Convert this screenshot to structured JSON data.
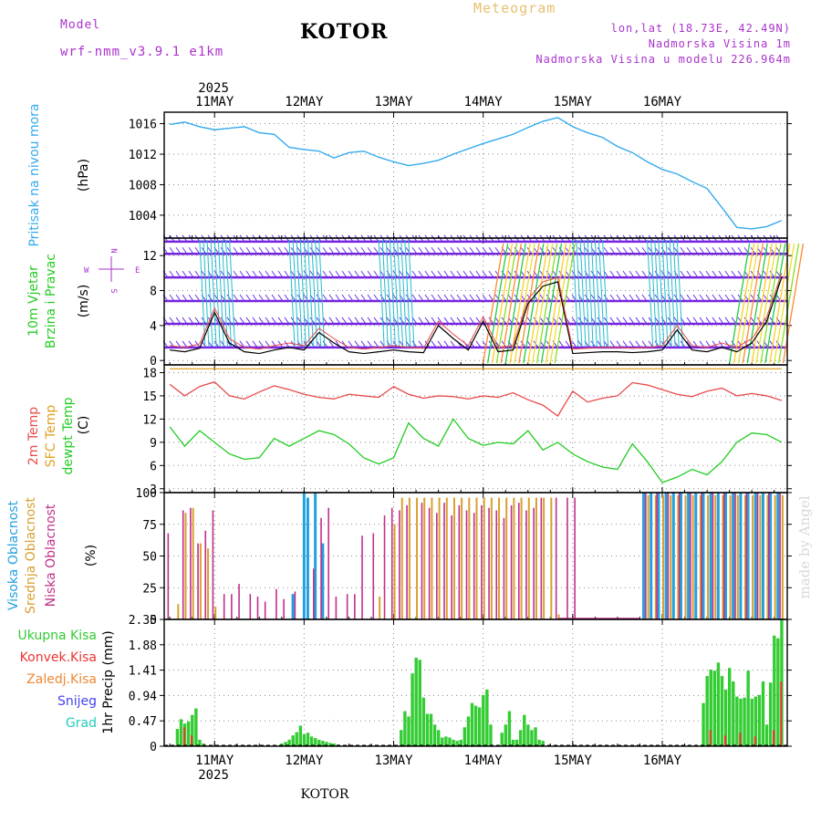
{
  "header": {
    "model_label": "Model",
    "model_name": "wrf-nmm_v3.9.1 e1km",
    "station": "KOTOR",
    "product": "Meteogram",
    "lonlat": "lon,lat (18.73E, 42.49N)",
    "elevation": "Nadmorska Visina 1m",
    "model_elevation": "Nadmorska Visina u modelu 226.964m",
    "watermark": "made by Angel",
    "footer_station": "KOTOR"
  },
  "colors": {
    "pressure": "#33aaee",
    "temp2m": "#e84a4a",
    "sfc_temp": "#e0a020",
    "dewpt": "#22cc22",
    "cloud_high": "#22a0e0",
    "cloud_mid": "#d8a030",
    "cloud_low": "#c0308a",
    "rain_total": "#33cc33",
    "rain_conv": "#ee3333",
    "freezing": "#ee8833",
    "snow": "#4444ee",
    "hail": "#22ccbb",
    "wind_label": "#22cc22",
    "wind_axis": "#aa33cc",
    "model": "#aa33cc",
    "product": "#e8c070"
  },
  "time_axis": {
    "year": "2025",
    "days": [
      "11MAY",
      "12MAY",
      "13MAY",
      "14MAY",
      "15MAY",
      "16MAY"
    ],
    "bottom_days": [
      "11MAY",
      "12MAY",
      "13MAY",
      "14MAY",
      "15MAY",
      "16MAY"
    ],
    "bottom_year": "2025"
  },
  "chart_data": [
    {
      "type": "line",
      "id": "pressure",
      "ylabel_lines": [
        "Pritisak na nivou mora"
      ],
      "unit": "(hPa)",
      "ylim": [
        1001,
        1017.5
      ],
      "yticks": [
        1004,
        1008,
        1012,
        1016
      ],
      "x_hours": [
        -12,
        -8,
        -4,
        0,
        4,
        8,
        12,
        16,
        20,
        24,
        28,
        32,
        36,
        40,
        44,
        48,
        52,
        56,
        60,
        64,
        68,
        72,
        76,
        80,
        84,
        88,
        92,
        96,
        100,
        104,
        108,
        112,
        116,
        120,
        124,
        128,
        132,
        136,
        140,
        144,
        148,
        152
      ],
      "values": [
        1015.9,
        1016.2,
        1015.6,
        1015.2,
        1015.4,
        1015.6,
        1014.8,
        1014.6,
        1012.9,
        1012.6,
        1012.4,
        1011.5,
        1012.2,
        1012.4,
        1011.6,
        1011.0,
        1010.5,
        1010.8,
        1011.2,
        1012.0,
        1012.7,
        1013.4,
        1014.0,
        1014.6,
        1015.5,
        1016.3,
        1016.8,
        1015.6,
        1014.8,
        1014.2,
        1013.0,
        1012.2,
        1011.0,
        1010.0,
        1009.4,
        1008.4,
        1007.5,
        1005.0,
        1002.4,
        1002.2,
        1002.5,
        1003.3
      ]
    },
    {
      "type": "line",
      "id": "wind",
      "ylabel_lines": [
        "10m Vjetar",
        "Brzina i Pravac"
      ],
      "unit": "(m/s)",
      "compass": {
        "n": "N",
        "s": "S",
        "w": "W",
        "e": "E"
      },
      "ylim": [
        -0.5,
        14
      ],
      "yticks": [
        0,
        4,
        8,
        12
      ],
      "x_hours": [
        -12,
        -8,
        -4,
        0,
        4,
        8,
        12,
        16,
        20,
        24,
        28,
        32,
        36,
        40,
        44,
        48,
        52,
        56,
        60,
        64,
        68,
        72,
        76,
        80,
        84,
        88,
        92,
        96,
        100,
        104,
        108,
        112,
        116,
        120,
        124,
        128,
        132,
        136,
        140,
        144,
        148,
        152
      ],
      "values": [
        1.2,
        1.0,
        1.4,
        5.5,
        2.0,
        1.0,
        0.8,
        1.2,
        1.5,
        1.2,
        3.2,
        2.0,
        1.0,
        0.8,
        1.0,
        1.2,
        1.0,
        0.9,
        4.0,
        2.5,
        1.2,
        4.5,
        1.0,
        1.2,
        6.5,
        8.5,
        9.0,
        0.8,
        0.9,
        1.0,
        1.0,
        0.9,
        1.0,
        1.2,
        3.5,
        1.2,
        1.0,
        1.5,
        1.0,
        2.0,
        4.5,
        9.5
      ],
      "barb_levels": [
        1.5,
        4.2,
        6.8,
        9.5,
        12.2,
        13.6
      ]
    },
    {
      "type": "line",
      "id": "temperature",
      "ylabel_lines": [
        "2m Temp",
        "SFC Temp",
        "dewpt Temp"
      ],
      "unit": "(C)",
      "ylim": [
        2.5,
        19
      ],
      "yticks": [
        3,
        6,
        9,
        12,
        15,
        18
      ],
      "x_hours": [
        -12,
        -8,
        -4,
        0,
        4,
        8,
        12,
        16,
        20,
        24,
        28,
        32,
        36,
        40,
        44,
        48,
        52,
        56,
        60,
        64,
        68,
        72,
        76,
        80,
        84,
        88,
        92,
        96,
        100,
        104,
        108,
        112,
        116,
        120,
        124,
        128,
        132,
        136,
        140,
        144,
        148,
        152
      ],
      "series": [
        {
          "name": "2m Temp",
          "values": [
            16.5,
            15.0,
            16.2,
            16.8,
            15.0,
            14.6,
            15.5,
            16.3,
            15.8,
            15.2,
            14.8,
            14.6,
            15.2,
            15.0,
            14.8,
            16.2,
            15.2,
            14.7,
            15.0,
            14.9,
            14.6,
            15.0,
            14.8,
            15.4,
            14.5,
            13.8,
            12.4,
            15.6,
            14.2,
            14.7,
            15.0,
            16.7,
            16.4,
            15.8,
            15.2,
            14.9,
            15.6,
            16.0,
            15.0,
            15.3,
            15.0,
            14.4
          ]
        },
        {
          "name": "SFC Temp",
          "values": [
            18.5,
            18.5,
            18.5,
            18.5,
            18.5,
            18.5,
            18.5,
            18.5,
            18.5,
            18.5,
            18.5,
            18.5,
            18.5,
            18.5,
            18.5,
            18.5,
            18.5,
            18.5,
            18.5,
            18.5,
            18.5,
            18.5,
            18.5,
            18.5,
            18.5,
            18.5,
            18.5,
            18.5,
            18.5,
            18.5,
            18.5,
            18.5,
            18.5,
            18.5,
            18.5,
            18.5,
            18.5,
            18.5,
            18.5,
            18.5,
            18.5,
            18.5
          ]
        },
        {
          "name": "dewpt Temp",
          "values": [
            11.0,
            8.5,
            10.5,
            9.0,
            7.5,
            6.8,
            7.0,
            9.5,
            8.5,
            9.5,
            10.5,
            10.0,
            8.8,
            7.0,
            6.2,
            7.0,
            11.5,
            9.5,
            8.5,
            12.0,
            9.5,
            8.6,
            9.0,
            8.8,
            10.5,
            8.0,
            9.0,
            7.5,
            6.5,
            5.8,
            5.5,
            8.8,
            6.5,
            3.8,
            4.5,
            5.5,
            4.8,
            6.5,
            9.0,
            10.2,
            10.0,
            9.0
          ]
        }
      ]
    },
    {
      "type": "bar",
      "id": "clouds",
      "ylabel_lines": [
        "Visoka Oblacnost",
        "Srednja Oblacnost",
        "Niska Oblacnost"
      ],
      "unit": "(%)",
      "ylim": [
        0,
        100
      ],
      "yticks": [
        0,
        25,
        50,
        75,
        100
      ],
      "series": [
        {
          "name": "Visoka Oblacnost",
          "x_hours": [
            21,
            24,
            25,
            27,
            29,
            115,
            117,
            119,
            121,
            123,
            125,
            127,
            129,
            131,
            133,
            135,
            137,
            139,
            141,
            143,
            145,
            147,
            149,
            151
          ],
          "values": [
            20,
            100,
            96,
            100,
            60,
            100,
            100,
            100,
            100,
            100,
            100,
            100,
            100,
            100,
            100,
            100,
            100,
            100,
            100,
            100,
            100,
            100,
            100,
            100
          ]
        },
        {
          "name": "Srednja Oblacnost",
          "x_hours": [
            -10,
            -8,
            -6,
            -4,
            -2,
            0,
            44,
            48,
            50,
            52,
            54,
            56,
            58,
            60,
            62,
            64,
            66,
            68,
            70,
            72,
            74,
            76,
            78,
            80,
            82,
            84,
            86,
            88,
            90,
            92,
            116,
            118,
            120,
            122,
            124,
            126,
            128,
            130,
            132,
            134,
            136,
            138,
            140,
            142,
            144,
            146,
            148,
            150,
            152
          ],
          "values": [
            12,
            84,
            88,
            60,
            56,
            10,
            18,
            75,
            96,
            96,
            96,
            96,
            96,
            96,
            96,
            96,
            96,
            96,
            96,
            96,
            96,
            96,
            96,
            96,
            96,
            96,
            96,
            96,
            96,
            4,
            98,
            98,
            98,
            98,
            98,
            98,
            98,
            98,
            98,
            98,
            98,
            98,
            98,
            98,
            98,
            98,
            98,
            98,
            98
          ]
        },
        {
          "name": "Niska Oblacnost",
          "x_hours": [
            -13,
            -9,
            -7,
            -5,
            -3,
            -1,
            2,
            4,
            6,
            9,
            11,
            13,
            16,
            18,
            21,
            26,
            28,
            30,
            32,
            35,
            37,
            39,
            42,
            45,
            47,
            49,
            51,
            55,
            57,
            59,
            61,
            63,
            65,
            67,
            69,
            71,
            73,
            75,
            77,
            79,
            81,
            83,
            85,
            87,
            91,
            94,
            96,
            115,
            118,
            121,
            124,
            127,
            130,
            133,
            136,
            139,
            142,
            145,
            148,
            151
          ],
          "values": [
            68,
            86,
            88,
            60,
            70,
            86,
            20,
            20,
            28,
            20,
            18,
            14,
            24,
            16,
            22,
            40,
            80,
            88,
            18,
            20,
            20,
            66,
            68,
            82,
            88,
            86,
            90,
            92,
            88,
            84,
            92,
            82,
            90,
            86,
            84,
            90,
            88,
            86,
            80,
            90,
            92,
            86,
            88,
            96,
            96,
            96,
            96,
            100,
            100,
            100,
            100,
            100,
            100,
            100,
            100,
            100,
            100,
            100,
            100,
            100
          ]
        }
      ]
    },
    {
      "type": "bar",
      "id": "precip",
      "ylabel_lines": [
        "Ukupna Kisa",
        "Konvek.Kisa",
        "Zaledj.Kisa",
        "Snijeg",
        "Grad"
      ],
      "unit": "1hr Precip (mm)",
      "ylim": [
        0,
        2.35
      ],
      "yticks": [
        0,
        0.47,
        0.94,
        1.41,
        1.88,
        2.35
      ],
      "series": [
        {
          "name": "Ukupna Kisa",
          "x_hours": [
            -10,
            -9,
            -8,
            -7,
            -6,
            -5,
            -4,
            -3,
            18,
            19,
            20,
            21,
            22,
            23,
            24,
            25,
            26,
            27,
            28,
            29,
            30,
            31,
            32,
            33,
            50,
            51,
            52,
            53,
            54,
            55,
            56,
            57,
            58,
            59,
            60,
            61,
            62,
            63,
            64,
            65,
            66,
            67,
            68,
            69,
            70,
            71,
            72,
            73,
            74,
            77,
            78,
            79,
            80,
            81,
            82,
            83,
            84,
            85,
            86,
            87,
            88,
            131,
            132,
            133,
            134,
            135,
            136,
            137,
            138,
            139,
            140,
            141,
            142,
            143,
            144,
            145,
            146,
            147,
            148,
            149,
            150,
            151,
            152
          ],
          "values": [
            0.32,
            0.5,
            0.42,
            0.46,
            0.58,
            0.7,
            0.12,
            0.05,
            0.05,
            0.08,
            0.12,
            0.2,
            0.26,
            0.38,
            0.22,
            0.25,
            0.18,
            0.15,
            0.12,
            0.1,
            0.08,
            0.06,
            0.05,
            0.03,
            0.3,
            0.65,
            0.55,
            1.35,
            1.64,
            1.6,
            0.9,
            0.6,
            0.6,
            0.4,
            0.3,
            0.16,
            0.18,
            0.16,
            0.12,
            0.1,
            0.12,
            0.35,
            0.55,
            0.8,
            0.75,
            0.72,
            0.95,
            1.05,
            0.4,
            0.25,
            0.4,
            0.65,
            0.12,
            0.12,
            0.3,
            0.58,
            0.4,
            0.3,
            0.35,
            0.12,
            0.1,
            0.8,
            1.3,
            1.42,
            1.4,
            1.55,
            1.3,
            1.05,
            1.45,
            1.2,
            0.92,
            0.88,
            0.9,
            1.4,
            0.88,
            0.92,
            0.95,
            1.2,
            0.4,
            1.18,
            2.05,
            2.0,
            2.35
          ]
        },
        {
          "name": "Konvek.Kisa",
          "x_hours": [
            -8,
            -6,
            133,
            137,
            141,
            145,
            150,
            152
          ],
          "values": [
            0.35,
            0.2,
            0.3,
            0.2,
            0.25,
            0.18,
            0.3,
            1.2
          ]
        }
      ]
    }
  ]
}
